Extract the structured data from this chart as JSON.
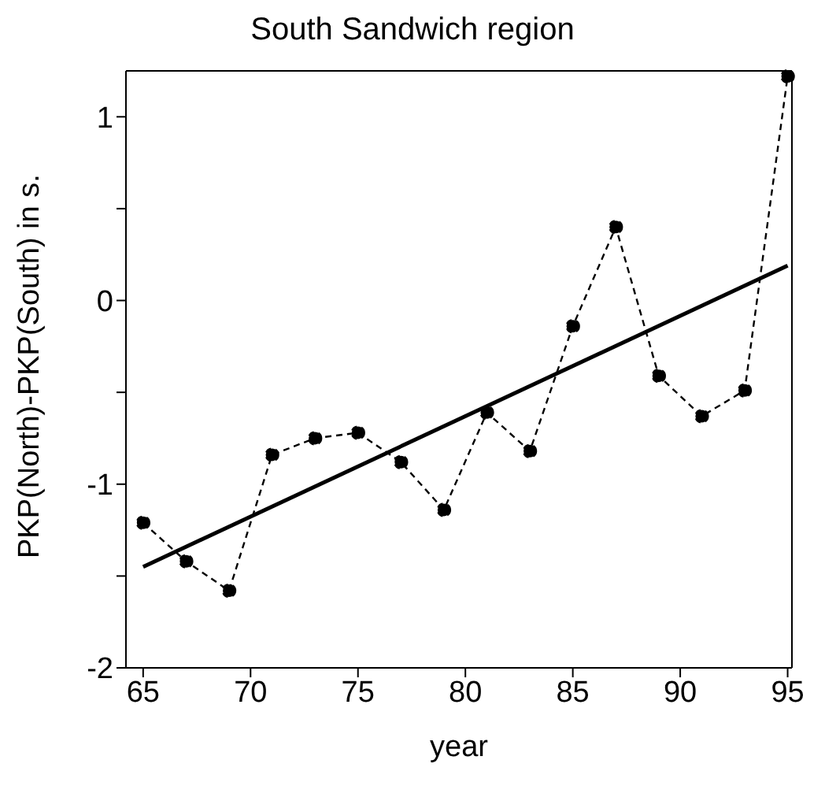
{
  "chart_data": {
    "type": "line",
    "title": "South Sandwich region",
    "xlabel": "year",
    "ylabel": "PKP(North)-PKP(South) in s.",
    "series": [
      {
        "color": "#000000",
        "line_style": "dashed",
        "marker": "circle",
        "x": [
          65,
          67,
          69,
          71,
          73,
          75,
          77,
          79,
          81,
          83,
          85,
          87,
          89,
          91,
          93,
          95
        ],
        "values": [
          -1.21,
          -1.42,
          -1.58,
          -0.84,
          -0.75,
          -0.72,
          -0.88,
          -1.14,
          -0.61,
          -0.82,
          -0.14,
          0.4,
          -0.41,
          -0.63,
          -0.49,
          1.22
        ]
      },
      {
        "color": "#000000",
        "line_style": "solid",
        "marker": "none",
        "x": [
          65,
          95
        ],
        "values": [
          -1.45,
          0.19
        ]
      }
    ],
    "xlim": [
      64.2,
      95.2
    ],
    "xticks": [
      65,
      70,
      75,
      80,
      85,
      90,
      95
    ],
    "ylim": [
      -2,
      1.25
    ],
    "yticks": [
      -2,
      {
        "value": -1.5,
        "label": null
      },
      -1,
      {
        "value": -0.5,
        "label": null
      },
      0,
      {
        "value": 0.5,
        "label": null
      },
      1
    ]
  }
}
